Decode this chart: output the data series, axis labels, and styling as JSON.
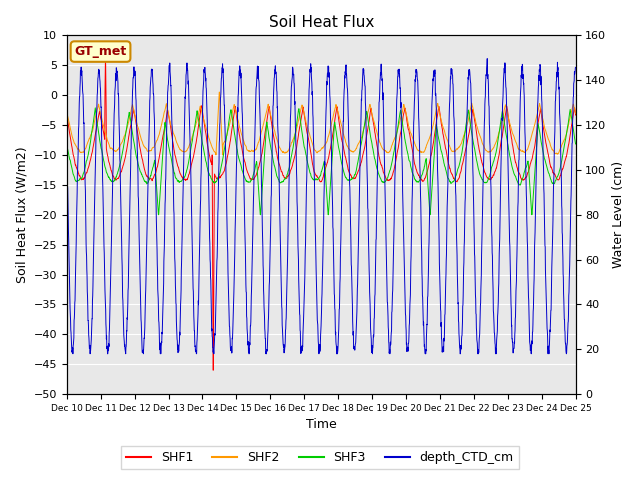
{
  "title": "Soil Heat Flux",
  "ylabel_left": "Soil Heat Flux (W/m2)",
  "ylabel_right": "Water Level (cm)",
  "xlabel": "Time",
  "ylim_left": [
    -50,
    10
  ],
  "ylim_right": [
    0,
    160
  ],
  "background_color": "#ffffff",
  "plot_bg_color": "#e8e8e8",
  "annotation_text": "GT_met",
  "annotation_bg": "#ffffcc",
  "annotation_border": "#cc8800",
  "annotation_text_color": "#990000",
  "series_colors": {
    "SHF1": "#ff0000",
    "SHF2": "#ff9900",
    "SHF3": "#00cc00",
    "depth_CTD_cm": "#0000cc"
  },
  "x_tick_labels": [
    "Dec 10",
    "Dec 11",
    "Dec 12",
    "Dec 13",
    "Dec 14",
    "Dec 15",
    "Dec 16",
    "Dec 17",
    "Dec 18",
    "Dec 19",
    "Dec 20",
    "Dec 21",
    "Dec 22",
    "Dec 23",
    "Dec 24",
    "Dec 25"
  ],
  "n_days": 15,
  "legend_labels": [
    "SHF1",
    "SHF2",
    "SHF3",
    "depth_CTD_cm"
  ],
  "yticks_left": [
    -50,
    -45,
    -40,
    -35,
    -30,
    -25,
    -20,
    -15,
    -10,
    -5,
    0,
    5,
    10
  ],
  "yticks_right": [
    0,
    20,
    40,
    60,
    80,
    100,
    120,
    140,
    160
  ]
}
